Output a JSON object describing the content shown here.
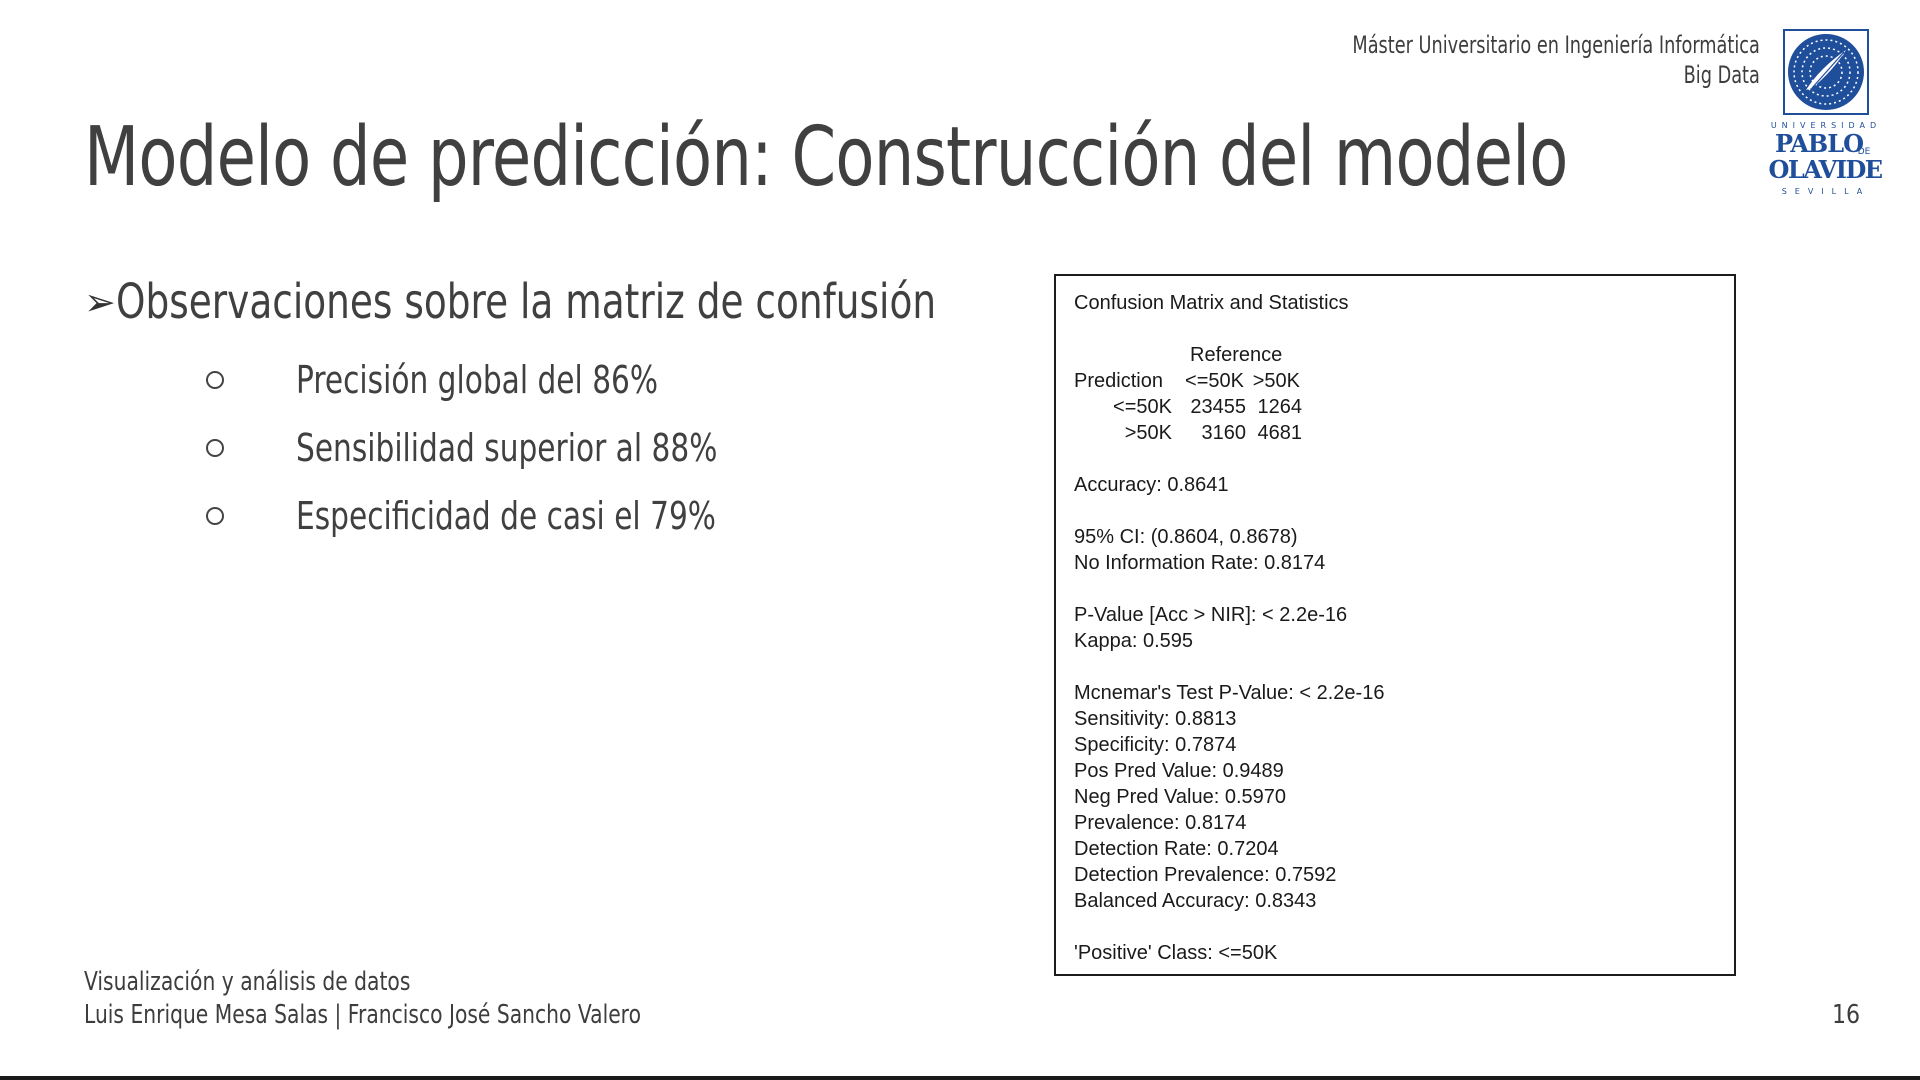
{
  "header": {
    "program_line1": "Máster Universitario en Ingeniería Informática",
    "program_line2": "Big Data",
    "logo": {
      "top_text": "UNIVERSIDAD",
      "name_line1": "PABLO",
      "name_de": "DE",
      "name_line2": "OLAVIDE",
      "bottom_text": "SEVILLA",
      "color": "#1f4e9b"
    }
  },
  "title": "Modelo de predicción: Construcción del modelo",
  "bullets": {
    "main": {
      "icon": "arrowhead-bullet-icon",
      "glyph": "➢",
      "text": "Observaciones sobre la matriz de confusión"
    },
    "sub": [
      {
        "glyph": "○",
        "text": "Precisión global del 86%"
      },
      {
        "glyph": "○",
        "text": "Sensibilidad superior al 88%"
      },
      {
        "glyph": "○",
        "text": "Especificidad de casi el 79%"
      }
    ]
  },
  "confusion_output": {
    "heading": "Confusion Matrix and Statistics",
    "reference_label": "Reference",
    "prediction_label": "Prediction",
    "columns": [
      "<=50K",
      ">50K"
    ],
    "rows": [
      {
        "label": "<=50K",
        "values": [
          "23455",
          "1264"
        ]
      },
      {
        "label": ">50K",
        "values": [
          "3160",
          "4681"
        ]
      }
    ],
    "accuracy": "Accuracy: 0.8641",
    "ci": "95% CI: (0.8604, 0.8678)",
    "nir": "No Information Rate: 0.8174",
    "pvalue": "P-Value [Acc > NIR]: < 2.2e-16",
    "kappa": "Kappa: 0.595",
    "mcnemar": "Mcnemar's Test P-Value: < 2.2e-16",
    "sensitivity": "Sensitivity: 0.8813",
    "specificity": "Specificity: 0.7874",
    "pos_pred": "Pos Pred Value: 0.9489",
    "neg_pred": "Neg Pred Value: 0.5970",
    "prevalence": "Prevalence: 0.8174",
    "detection_rate": "Detection Rate: 0.7204",
    "detection_prevalence": "Detection Prevalence: 0.7592",
    "balanced_accuracy": "Balanced Accuracy: 0.8343",
    "positive_class": "'Positive' Class: <=50K"
  },
  "footer": {
    "course": "Visualización y análisis de datos",
    "authors": "Luis Enrique Mesa Salas | Francisco José Sancho Valero",
    "page_number": "16"
  }
}
